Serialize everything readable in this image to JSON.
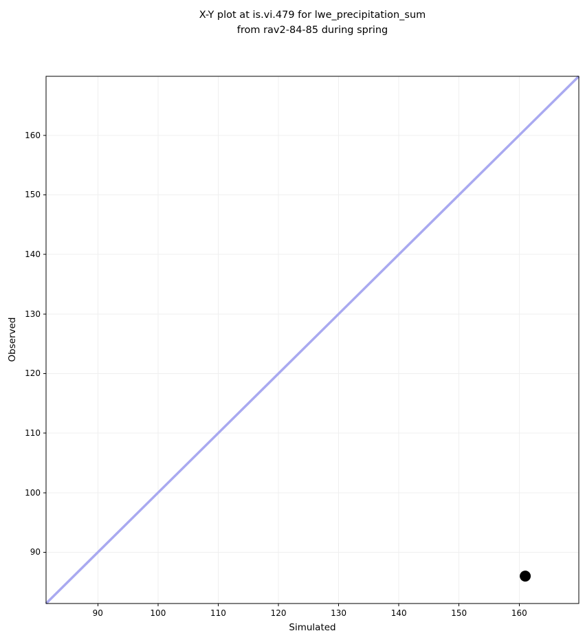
{
  "chart_data": {
    "type": "scatter",
    "title": "X-Y plot at is.vi.479 for lwe_precipitation_sum\nfrom rav2-84-85 during spring",
    "title_lines": [
      "X-Y plot at is.vi.479 for lwe_precipitation_sum",
      "from rav2-84-85 during spring"
    ],
    "xlabel": "Simulated",
    "ylabel": "Observed",
    "xlim": [
      81.4,
      169.9
    ],
    "ylim": [
      81.4,
      169.9
    ],
    "xticks": [
      90,
      100,
      110,
      120,
      130,
      140,
      150,
      160
    ],
    "yticks": [
      90,
      100,
      110,
      120,
      130,
      140,
      150,
      160
    ],
    "grid": true,
    "legend": "none",
    "series": [
      {
        "name": "simulated-vs-observed",
        "marker": "circle",
        "points": [
          {
            "x": 161,
            "y": 86
          }
        ]
      }
    ],
    "identity_line": {
      "x": [
        81.4,
        169.9
      ],
      "y": [
        81.4,
        169.9
      ]
    },
    "colors": {
      "identity_line": "#a9a9f0",
      "point": "#000000",
      "grid": "#efefef",
      "spine": "#000000",
      "background": "#ffffff",
      "text": "#000000"
    },
    "style": {
      "identity_line_width": 3.5,
      "point_radius": 8,
      "tick_length": 4
    }
  }
}
